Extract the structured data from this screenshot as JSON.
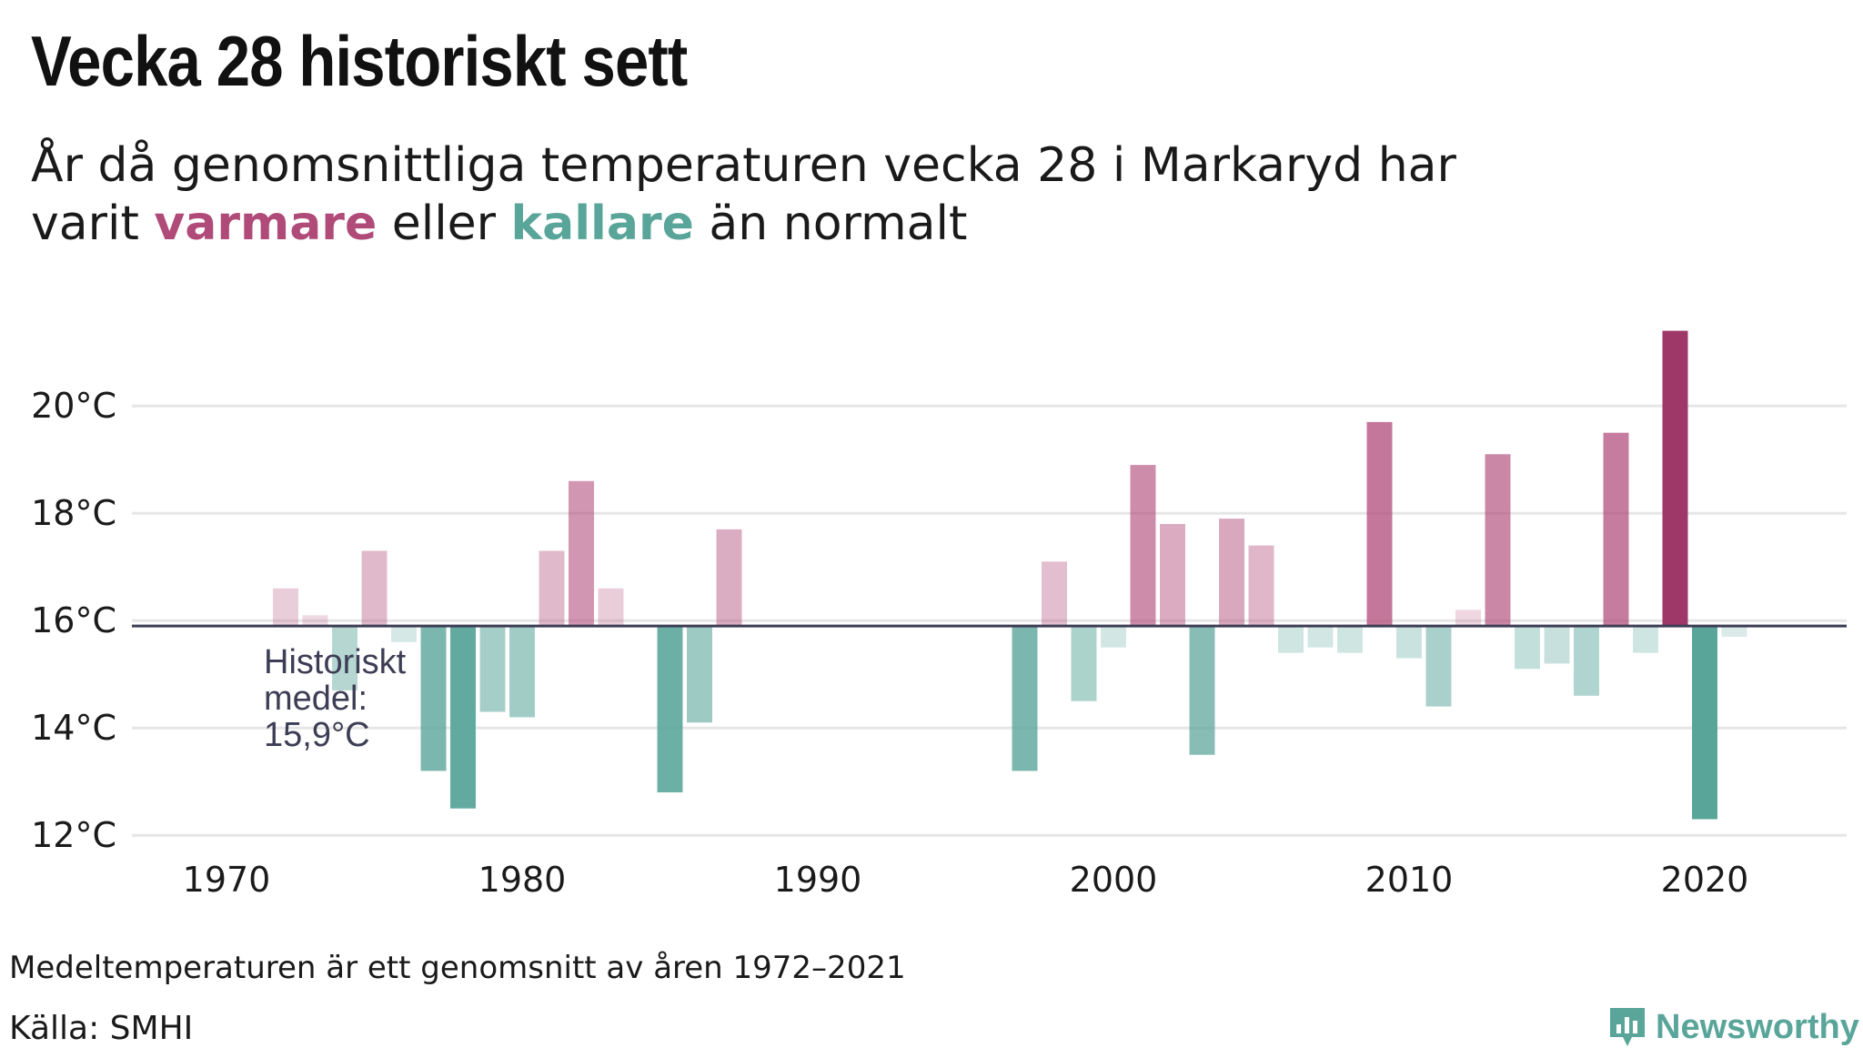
{
  "header": {
    "title": "Vecka 28 historiskt sett",
    "subtitle_part1": "År då genomsnittliga temperaturen vecka 28 i Markaryd har varit ",
    "subtitle_warm": "varmare",
    "subtitle_mid": " eller ",
    "subtitle_cold": "kallare",
    "subtitle_end": " än normalt"
  },
  "chart_data": {
    "type": "bar",
    "baseline": 15.9,
    "baseline_label": [
      "Historiskt",
      "medel:",
      "15,9°C"
    ],
    "ylim": [
      11.8,
      21.8
    ],
    "yticks": [
      12,
      14,
      16,
      18,
      20
    ],
    "ytick_labels": [
      "12°C",
      "14°C",
      "16°C",
      "18°C",
      "20°C"
    ],
    "xlim": [
      1966.8,
      2024.8
    ],
    "xticks": [
      1970,
      1980,
      1990,
      2000,
      2010,
      2020
    ],
    "x": [
      1972,
      1973,
      1974,
      1975,
      1976,
      1977,
      1978,
      1979,
      1980,
      1981,
      1982,
      1983,
      1984,
      1985,
      1986,
      1987,
      1997,
      1998,
      1999,
      2000,
      2001,
      2002,
      2003,
      2004,
      2005,
      2006,
      2007,
      2008,
      2009,
      2010,
      2011,
      2012,
      2013,
      2014,
      2015,
      2016,
      2017,
      2018,
      2019,
      2020,
      2021
    ],
    "values": [
      16.6,
      16.1,
      14.7,
      17.3,
      15.6,
      13.2,
      12.5,
      14.3,
      14.2,
      17.3,
      18.6,
      16.6,
      15.9,
      12.8,
      14.1,
      17.7,
      13.2,
      17.1,
      14.5,
      15.5,
      18.9,
      17.8,
      13.5,
      17.9,
      17.4,
      15.4,
      15.5,
      15.4,
      19.7,
      15.3,
      14.4,
      16.2,
      19.1,
      15.1,
      15.2,
      14.6,
      19.5,
      15.4,
      21.4,
      12.3,
      15.7
    ],
    "colors": {
      "warm": "#b04a78",
      "warm_strong": "#9e3868",
      "cold": "#5aa59a",
      "baseline": "#3d3d55",
      "grid": "#e6e6e6"
    }
  },
  "footer": {
    "footnote": "Medeltemperaturen är ett genomsnitt av åren 1972–2021",
    "source": "Källa: SMHI",
    "brand": "Newsworthy",
    "brand_icon": "newsworthy-logo-icon"
  }
}
